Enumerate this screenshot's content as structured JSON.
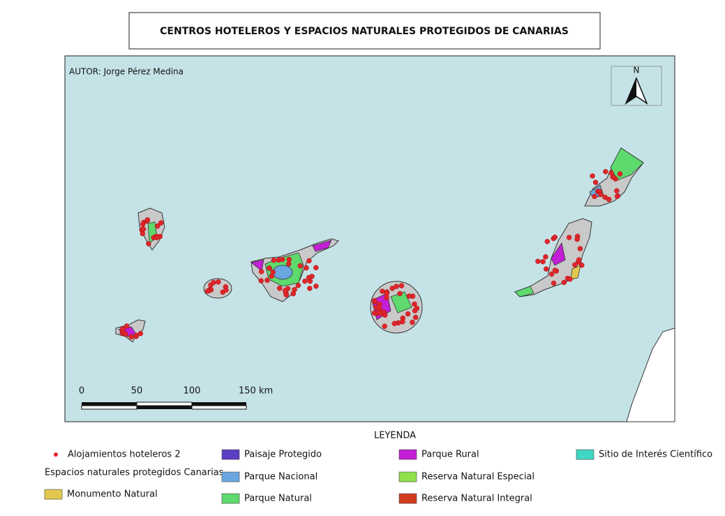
{
  "title": "CENTROS HOTELEROS Y ESPACIOS NATURALES PROTEGIDOS DE CANARIAS",
  "author": "AUTOR: Jorge Pérez Medina",
  "north": "N",
  "scale_bar": {
    "labels": [
      "0",
      "50",
      "100",
      "150 km"
    ]
  },
  "legend": {
    "title": "LEYENDA",
    "points": {
      "label": "Alojamientos hoteleros 2",
      "color": "#e0262b"
    },
    "group": "Espacios naturales protegidos Canarias",
    "items": [
      {
        "label": "Monumento Natural",
        "color": "#e2c74e"
      },
      {
        "label": "Paisaje Protegido",
        "color": "#5b3fc4"
      },
      {
        "label": "Parque Nacional",
        "color": "#6aa7e0"
      },
      {
        "label": "Parque Natural",
        "color": "#5ed96e"
      },
      {
        "label": "Parque Rural",
        "color": "#c21fd6"
      },
      {
        "label": "Reserva Natural Especial",
        "color": "#8fe04a"
      },
      {
        "label": "Reserva Natural Integral",
        "color": "#d23a1f"
      },
      {
        "label": "Sitio de Interés Científico",
        "color": "#3ed8c4"
      }
    ]
  }
}
